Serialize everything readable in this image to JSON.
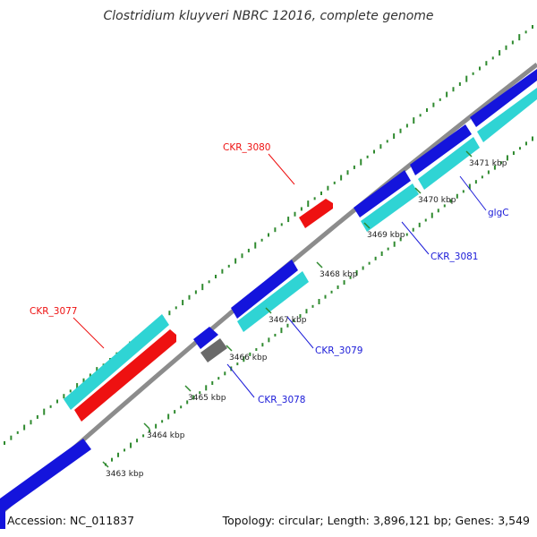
{
  "title": "Clostridium kluyveri NBRC 12016, complete genome",
  "accession": "Accession: NC_011837",
  "summary": "Topology: circular; Length: 3,896,121 bp; Genes: 3,549",
  "colors": {
    "backbone": "#8c8c8c",
    "forward": "#1414dc",
    "reverse": "#2fd4d4",
    "rna": "#ee1111",
    "other": "#6a6a6a",
    "gc_tick": "#2f8a2f",
    "label_blue": "#1a1ad8",
    "label_red": "#ee1111"
  },
  "ticks": [
    "3463 kbp",
    "3464 kbp",
    "3465 kbp",
    "3466 kbp",
    "3467 kbp",
    "3468 kbp",
    "3469 kbp",
    "3470 kbp",
    "3471 kbp"
  ],
  "gene_labels": [
    {
      "id": "CKR_3080",
      "color": "red"
    },
    {
      "id": "CKR_3077",
      "color": "red"
    },
    {
      "id": "CKR_3078",
      "color": "blue"
    },
    {
      "id": "CKR_3079",
      "color": "blue"
    },
    {
      "id": "CKR_3081",
      "color": "blue"
    },
    {
      "id": "glgC",
      "color": "blue"
    }
  ]
}
